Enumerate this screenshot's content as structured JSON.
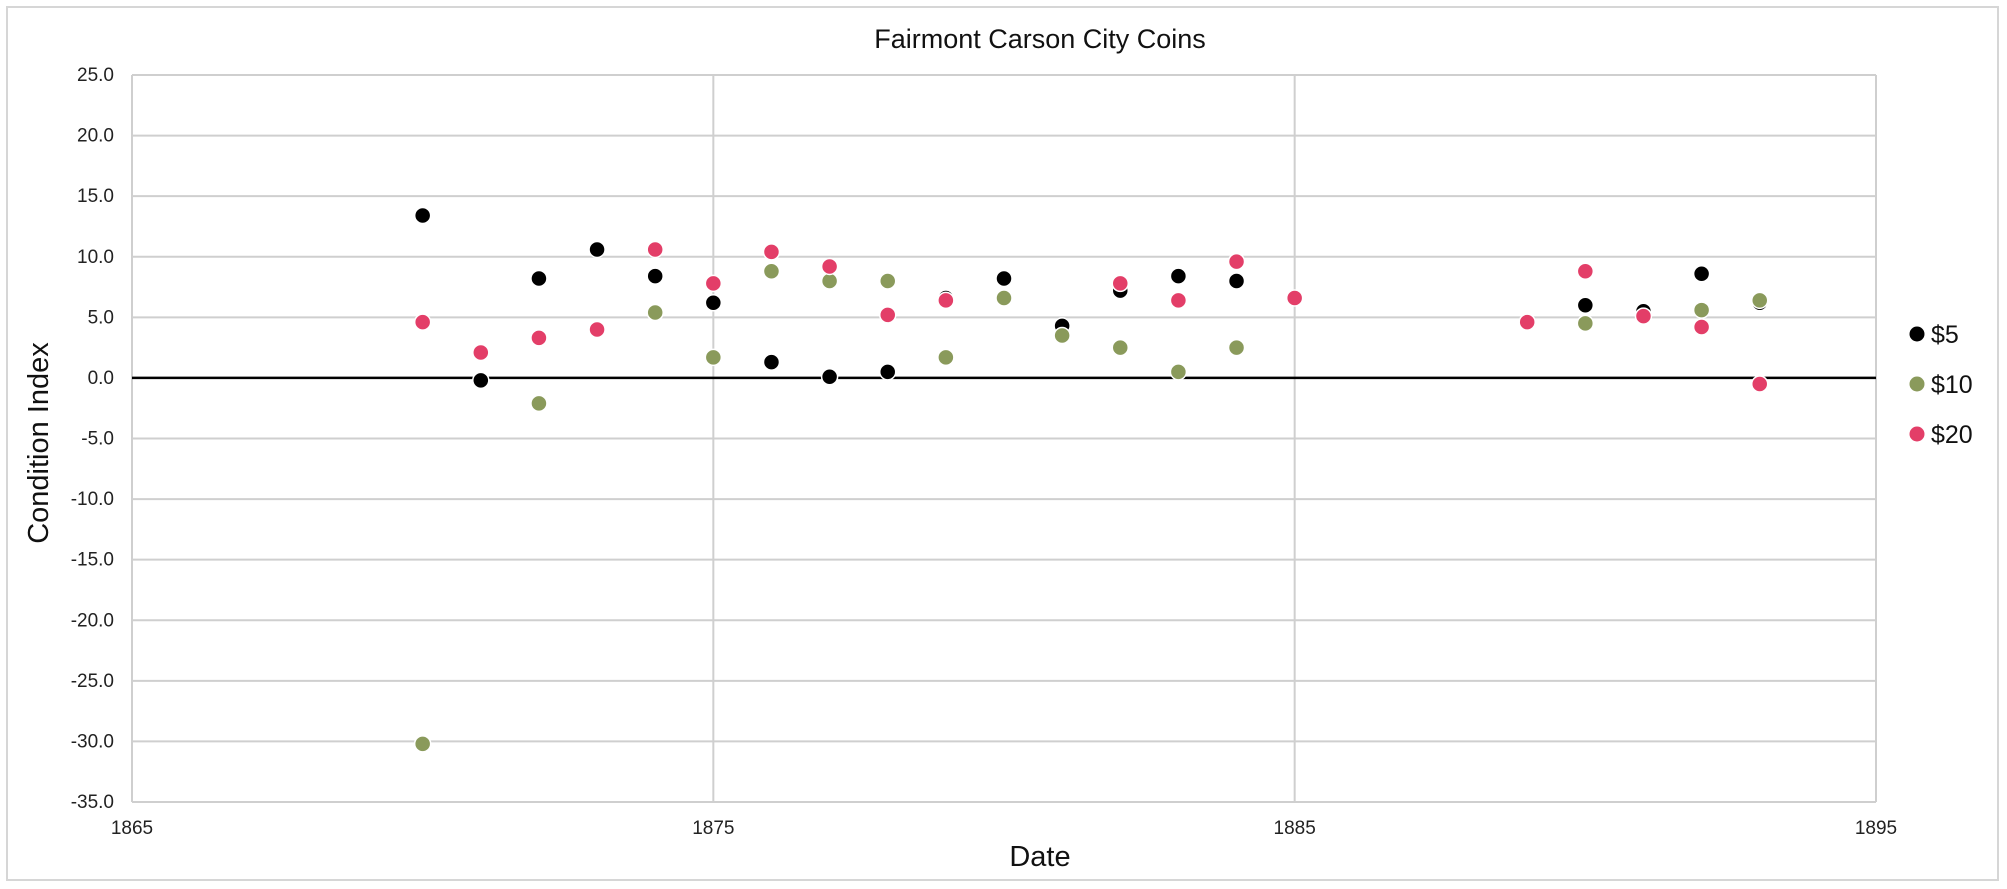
{
  "chart_data": {
    "type": "scatter",
    "title": "Fairmont Carson City Coins",
    "xlabel": "Date",
    "ylabel": "Condition Index",
    "xlim": [
      1865,
      1895
    ],
    "ylim": [
      -35,
      25
    ],
    "x_ticks": [
      "1865",
      "1875",
      "1885",
      "1895"
    ],
    "y_ticks": [
      "25.0",
      "20.0",
      "15.0",
      "10.0",
      "5.0",
      "0.0",
      "-5.0",
      "-10.0",
      "-15.0",
      "-20.0",
      "-25.0",
      "-30.0",
      "-35.0"
    ],
    "grid": true,
    "legend_position": "right",
    "series": [
      {
        "name": "$5",
        "color": "#000000",
        "points": [
          [
            1870,
            13.4
          ],
          [
            1871,
            -0.2
          ],
          [
            1872,
            8.2
          ],
          [
            1873,
            10.6
          ],
          [
            1874,
            8.4
          ],
          [
            1875,
            6.2
          ],
          [
            1876,
            1.3
          ],
          [
            1877,
            0.1
          ],
          [
            1878,
            0.5
          ],
          [
            1879,
            6.6
          ],
          [
            1880,
            8.2
          ],
          [
            1881,
            4.3
          ],
          [
            1882,
            7.2
          ],
          [
            1883,
            8.4
          ],
          [
            1884,
            8.0
          ],
          [
            1890,
            6.0
          ],
          [
            1891,
            5.5
          ],
          [
            1892,
            8.6
          ],
          [
            1893,
            6.2
          ]
        ]
      },
      {
        "name": "$10",
        "color": "#8a9a5b",
        "points": [
          [
            1870,
            -30.2
          ],
          [
            1872,
            -2.1
          ],
          [
            1874,
            5.4
          ],
          [
            1875,
            1.7
          ],
          [
            1876,
            8.8
          ],
          [
            1877,
            8.0
          ],
          [
            1878,
            8.0
          ],
          [
            1879,
            1.7
          ],
          [
            1880,
            6.6
          ],
          [
            1881,
            3.5
          ],
          [
            1882,
            2.5
          ],
          [
            1883,
            0.5
          ],
          [
            1884,
            2.5
          ],
          [
            1890,
            4.5
          ],
          [
            1892,
            5.6
          ],
          [
            1893,
            6.4
          ]
        ]
      },
      {
        "name": "$20",
        "color": "#e33e68",
        "points": [
          [
            1870,
            4.6
          ],
          [
            1871,
            2.1
          ],
          [
            1872,
            3.3
          ],
          [
            1873,
            4.0
          ],
          [
            1874,
            10.6
          ],
          [
            1875,
            7.8
          ],
          [
            1876,
            10.4
          ],
          [
            1877,
            9.2
          ],
          [
            1878,
            5.2
          ],
          [
            1879,
            6.4
          ],
          [
            1882,
            7.8
          ],
          [
            1883,
            6.4
          ],
          [
            1884,
            9.6
          ],
          [
            1885,
            6.6
          ],
          [
            1889,
            4.6
          ],
          [
            1890,
            8.8
          ],
          [
            1891,
            5.1
          ],
          [
            1892,
            4.2
          ],
          [
            1893,
            -0.5
          ]
        ]
      }
    ]
  }
}
